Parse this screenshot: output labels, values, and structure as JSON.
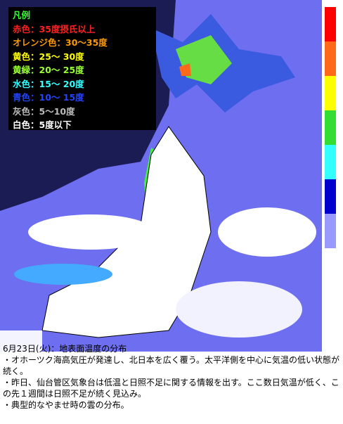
{
  "legend": {
    "title": "凡例",
    "items": [
      {
        "label": "赤色：35度摂氏以上",
        "color": "#ff2020"
      },
      {
        "label": "オレンジ色：30～35度",
        "color": "#ff9900"
      },
      {
        "label": "黄色：25～ 30度",
        "color": "#ffff00"
      },
      {
        "label": "黄緑：20～ 25度",
        "color": "#99ff33"
      },
      {
        "label": "水色：15～ 20度",
        "color": "#33ffff"
      },
      {
        "label": "青色：10～ 15度",
        "color": "#2244ff"
      },
      {
        "label": "灰色：5～10度",
        "color": "#bbbbbb"
      },
      {
        "label": "白色：5度以下",
        "color": "#ffffff"
      }
    ]
  },
  "color_bar": [
    "#ff0000",
    "#ff6a1a",
    "#ffff00",
    "#33dd33",
    "#33ffff",
    "#0000cc",
    "#9999ff"
  ],
  "caption": {
    "heading": "6月23日(火)：地表面温度の分布",
    "notes": [
      "・オホーツク海高気圧が発達し、北日本を広く覆う。太平洋側を中心に気温の低い状態が続く。",
      "・昨日、仙台管区気象台は低温と日照不足に関する情報を出す。ここ数日気温が低く、この先１週間は日照不足が続く見込み。",
      "・典型的なやませ時の雲の分布。"
    ]
  }
}
